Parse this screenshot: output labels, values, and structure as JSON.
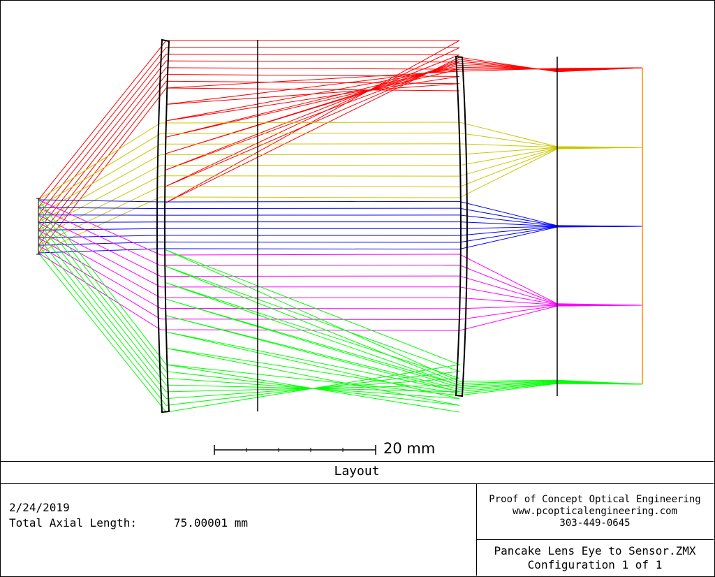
{
  "title": "Layout",
  "date": "2/24/2019",
  "total_axial_length": {
    "label": "Total Axial Length:",
    "value": "75.00001 mm"
  },
  "company": {
    "name": "Proof of Concept Optical Engineering",
    "website": "www.pcopticalengineering.com",
    "phone": "303-449-0645"
  },
  "file": {
    "name": "Pancake Lens Eye to Sensor.ZMX",
    "configuration": "Configuration 1 of 1"
  },
  "scale_bar": {
    "label": "20 mm",
    "length_mm": 20
  },
  "fields": [
    {
      "name": "red",
      "color": "#ff0000"
    },
    {
      "name": "yellow",
      "color": "#c8c800"
    },
    {
      "name": "blue",
      "color": "#0000ff"
    },
    {
      "name": "magenta",
      "color": "#ff00ff"
    },
    {
      "name": "green",
      "color": "#00ff00"
    }
  ],
  "image_plane_color": "#ff8c00"
}
